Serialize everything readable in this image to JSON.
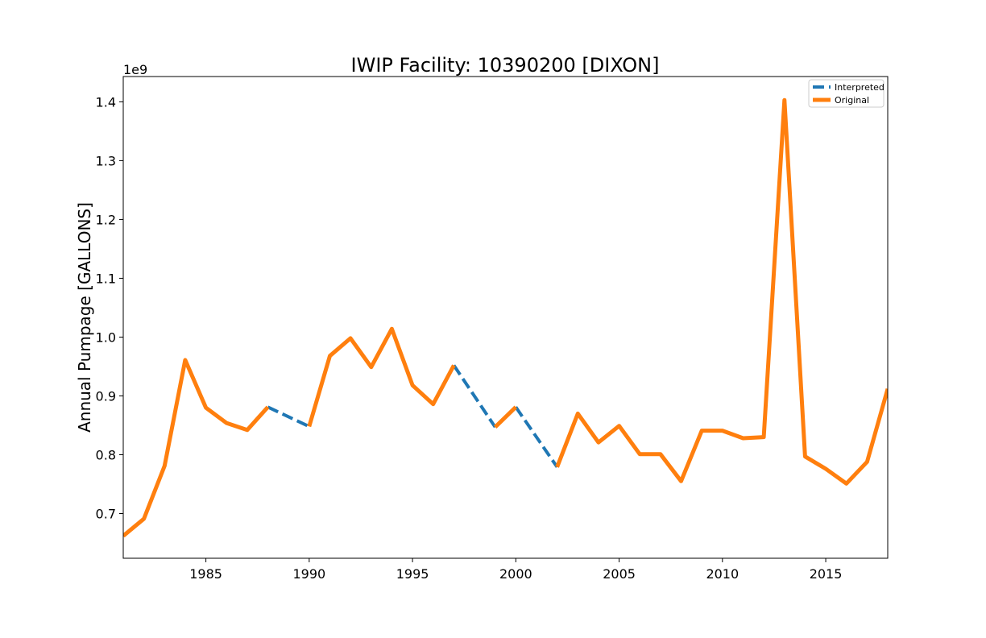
{
  "chart_data": {
    "type": "line",
    "title": "IWIP Facility: 10390200 [DIXON]",
    "xlabel": "",
    "ylabel": "Annual Pumpage [GALLONS]",
    "y_offset_label": "1e9",
    "xlim": [
      1981,
      2018
    ],
    "ylim": [
      0.624,
      1.443
    ],
    "x_ticks": [
      1985,
      1990,
      1995,
      2000,
      2005,
      2010,
      2015
    ],
    "x_tick_labels": [
      "1985",
      "1990",
      "1995",
      "2000",
      "2005",
      "2010",
      "2015"
    ],
    "y_ticks": [
      0.7,
      0.8,
      0.9,
      1.0,
      1.1,
      1.2,
      1.3,
      1.4
    ],
    "y_tick_labels": [
      "0.7",
      "0.8",
      "0.9",
      "1.0",
      "1.1",
      "1.2",
      "1.3",
      "1.4"
    ],
    "grid": false,
    "legend_position": "top-right",
    "series": [
      {
        "name": "Interpreted",
        "color": "#1f77b4",
        "style": "dashed",
        "segments": [
          [
            [
              1988,
              0.881
            ],
            [
              1990,
              0.848
            ]
          ],
          [
            [
              1997,
              0.952
            ],
            [
              1999,
              0.847
            ]
          ],
          [
            [
              2000,
              0.881
            ],
            [
              2002,
              0.779
            ]
          ]
        ]
      },
      {
        "name": "Original",
        "color": "#ff7f0e",
        "style": "solid",
        "segments": [
          [
            [
              1981,
              0.662
            ],
            [
              1982,
              0.691
            ],
            [
              1983,
              0.781
            ],
            [
              1984,
              0.961
            ],
            [
              1985,
              0.88
            ],
            [
              1986,
              0.854
            ],
            [
              1987,
              0.842
            ],
            [
              1988,
              0.881
            ]
          ],
          [
            [
              1990,
              0.848
            ],
            [
              1991,
              0.968
            ],
            [
              1992,
              0.998
            ],
            [
              1993,
              0.949
            ],
            [
              1994,
              1.014
            ],
            [
              1995,
              0.918
            ],
            [
              1996,
              0.886
            ],
            [
              1997,
              0.952
            ]
          ],
          [
            [
              1999,
              0.847
            ],
            [
              2000,
              0.881
            ]
          ],
          [
            [
              2002,
              0.779
            ],
            [
              2003,
              0.87
            ],
            [
              2004,
              0.821
            ],
            [
              2005,
              0.849
            ],
            [
              2006,
              0.801
            ],
            [
              2007,
              0.801
            ],
            [
              2008,
              0.755
            ],
            [
              2009,
              0.841
            ],
            [
              2010,
              0.841
            ],
            [
              2011,
              0.828
            ],
            [
              2012,
              0.83
            ],
            [
              2013,
              1.403
            ],
            [
              2014,
              0.797
            ],
            [
              2015,
              0.776
            ],
            [
              2016,
              0.751
            ],
            [
              2017,
              0.788
            ],
            [
              2018,
              0.912
            ]
          ]
        ]
      }
    ]
  }
}
